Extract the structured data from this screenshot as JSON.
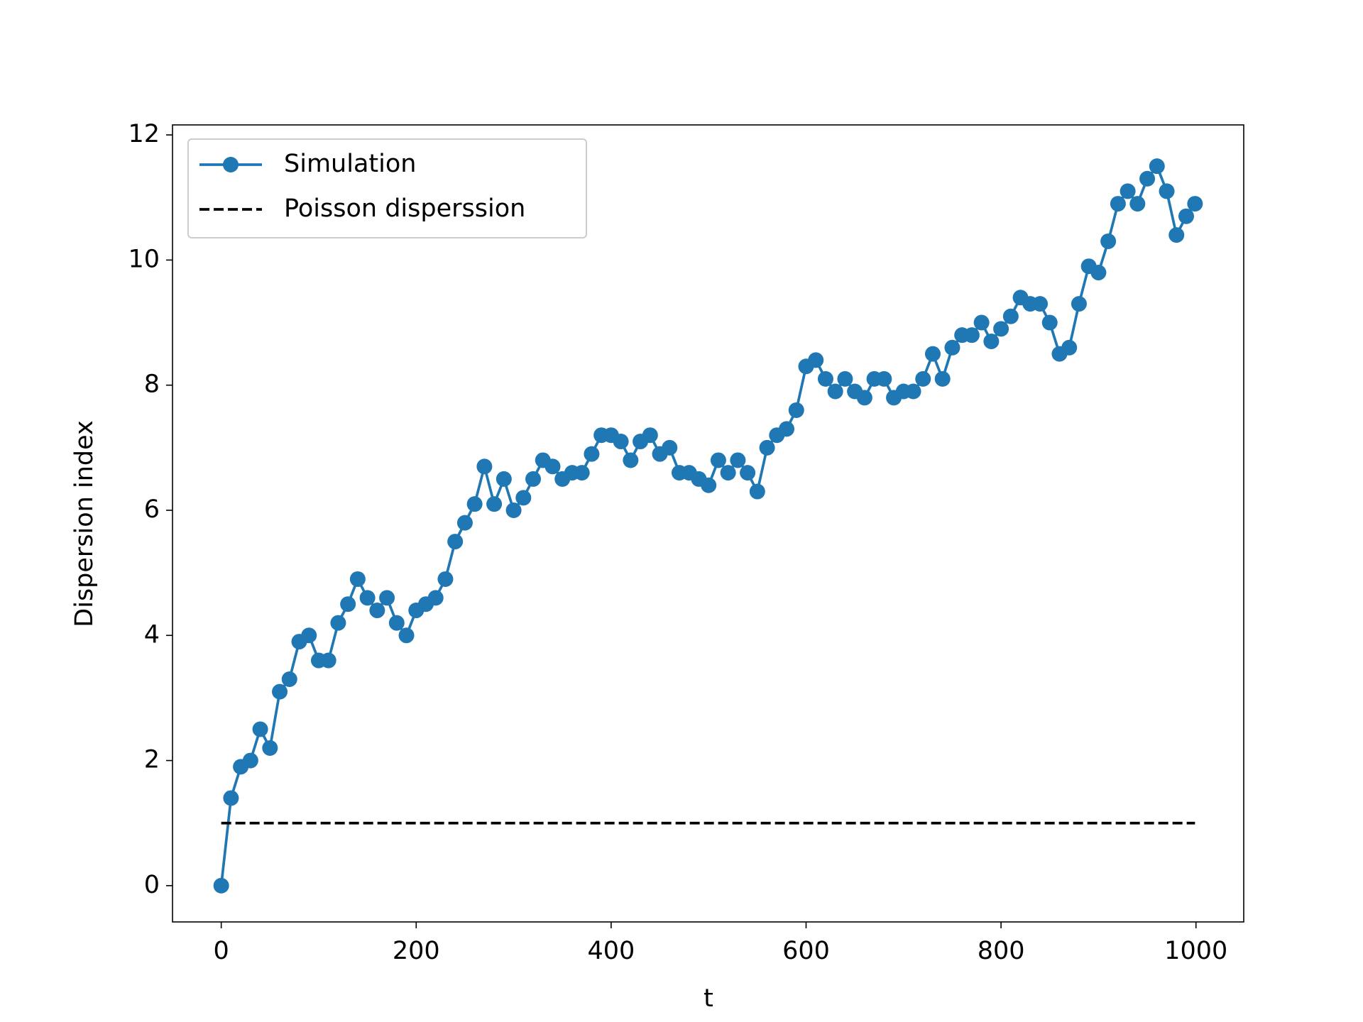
{
  "chart_data": {
    "type": "line",
    "xlabel": "t",
    "ylabel": "Dispersion index",
    "xlim": [
      -50,
      1049
    ],
    "ylim": [
      -0.58,
      12.16
    ],
    "xticks": [
      0,
      200,
      400,
      600,
      800,
      1000
    ],
    "yticks": [
      0,
      2,
      4,
      6,
      8,
      10,
      12
    ],
    "legend": "upper left",
    "series": [
      {
        "name": "Simulation",
        "color": "#1f77b4",
        "style": "solid",
        "marker": "circle",
        "x": [
          0,
          10,
          20,
          30,
          40,
          50,
          60,
          70,
          80,
          90,
          100,
          110,
          120,
          130,
          140,
          150,
          160,
          170,
          180,
          190,
          200,
          210,
          220,
          230,
          240,
          250,
          260,
          270,
          280,
          290,
          300,
          310,
          320,
          330,
          340,
          350,
          360,
          370,
          380,
          390,
          400,
          410,
          420,
          430,
          440,
          450,
          460,
          470,
          480,
          490,
          500,
          510,
          520,
          530,
          540,
          550,
          560,
          570,
          580,
          590,
          600,
          610,
          620,
          630,
          640,
          650,
          660,
          670,
          680,
          690,
          700,
          710,
          720,
          730,
          740,
          750,
          760,
          770,
          780,
          790,
          800,
          810,
          820,
          830,
          840,
          850,
          860,
          870,
          880,
          890,
          900,
          910,
          920,
          930,
          940,
          950,
          960,
          970,
          980,
          990,
          999
        ],
        "values": [
          0,
          1.4,
          1.9,
          2.0,
          2.5,
          2.2,
          3.1,
          3.3,
          3.9,
          4.0,
          3.6,
          3.6,
          4.2,
          4.5,
          4.9,
          4.6,
          4.4,
          4.6,
          4.2,
          4.0,
          4.4,
          4.5,
          4.6,
          4.9,
          5.5,
          5.8,
          6.1,
          6.7,
          6.1,
          6.5,
          6.0,
          6.2,
          6.5,
          6.8,
          6.7,
          6.5,
          6.6,
          6.6,
          6.9,
          7.2,
          7.2,
          7.1,
          6.8,
          7.1,
          7.2,
          6.9,
          7.0,
          6.6,
          6.6,
          6.5,
          6.4,
          6.8,
          6.6,
          6.8,
          6.6,
          6.3,
          7.0,
          7.2,
          7.3,
          7.6,
          8.3,
          8.4,
          8.1,
          7.9,
          8.1,
          7.9,
          7.8,
          8.1,
          8.1,
          7.8,
          7.9,
          7.9,
          8.1,
          8.5,
          8.1,
          8.6,
          8.8,
          8.8,
          9.0,
          8.7,
          8.9,
          9.1,
          9.4,
          9.3,
          9.3,
          9.0,
          8.5,
          8.6,
          9.3,
          9.9,
          9.8,
          10.3,
          10.9,
          11.1,
          10.9,
          11.3,
          11.5,
          11.1,
          10.4,
          10.7,
          10.9
        ]
      },
      {
        "name": "Poisson disperssion",
        "color": "#000000",
        "style": "dashed",
        "marker": "none",
        "x": [
          0,
          999
        ],
        "values": [
          1,
          1
        ]
      }
    ]
  }
}
